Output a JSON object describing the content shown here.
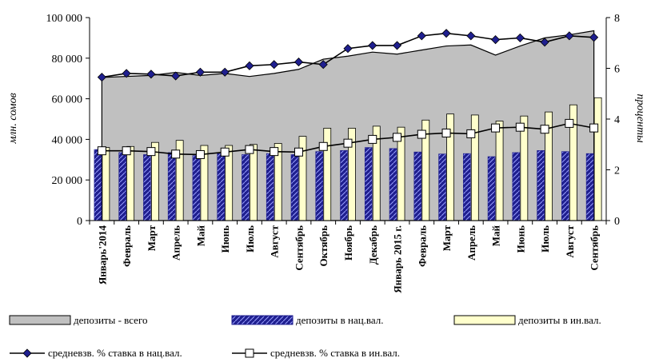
{
  "chart_data": {
    "type": "bar",
    "categories": [
      "Январь'2014",
      "Февраль",
      "Март",
      "Апрель",
      "Май",
      "Июнь",
      "Июль",
      "Август",
      "Сентябрь",
      "Октябрь",
      "Ноябрь",
      "Декабрь",
      "Январь 2015 г.",
      "Февраль",
      "Март",
      "Апрель",
      "Май",
      "Июнь",
      "Июль",
      "Август",
      "Сентябрь"
    ],
    "ylabel": "млн. сомов",
    "y2label": "проценты",
    "ylim": [
      0,
      100000
    ],
    "y2lim": [
      0,
      8
    ],
    "y_ticks": [
      "0",
      "20 000",
      "40 000",
      "60 000",
      "80 000",
      "100 000"
    ],
    "y2_ticks": [
      "0",
      "2",
      "4",
      "6",
      "8"
    ],
    "legend_position": "bottom",
    "colors": {
      "total_area": "#c0c0c0",
      "nat_bar": "#1f1f8f",
      "nat_bar_pattern": "#9aa0ff",
      "foreign_bar": "#ffffcc",
      "line": "#000000",
      "nat_marker": "#1f1f8f",
      "foreign_marker": "#ffffff"
    },
    "series": [
      {
        "name": "депозиты - всего",
        "type": "area",
        "axis": "left",
        "values": [
          70500,
          71000,
          71500,
          73000,
          71500,
          72500,
          71000,
          72500,
          74500,
          79500,
          81000,
          83000,
          82000,
          84000,
          86000,
          86500,
          81500,
          86000,
          90000,
          91500,
          93500
        ]
      },
      {
        "name": "депозиты в нац.вал.",
        "type": "bar",
        "axis": "left",
        "values": [
          35000,
          33500,
          32500,
          33500,
          32000,
          33000,
          32500,
          33000,
          32500,
          34000,
          34500,
          36000,
          35500,
          33800,
          32800,
          33000,
          31500,
          33500,
          34500,
          34000,
          33000
        ]
      },
      {
        "name": "депозиты в ин.вал.",
        "type": "bar",
        "axis": "left",
        "values": [
          36000,
          36500,
          38500,
          39500,
          37000,
          37000,
          37500,
          38000,
          41500,
          45500,
          45500,
          46500,
          46000,
          49500,
          52500,
          52000,
          49000,
          51500,
          53500,
          57000,
          60500
        ]
      },
      {
        "name": "средневзв. % ставка в нац.вал.",
        "type": "line",
        "axis": "right",
        "marker": "diamond",
        "values": [
          5.65,
          5.8,
          5.77,
          5.7,
          5.85,
          5.85,
          6.1,
          6.15,
          6.25,
          6.15,
          6.78,
          6.9,
          6.9,
          7.28,
          7.38,
          7.28,
          7.13,
          7.2,
          7.03,
          7.28,
          7.22
        ]
      },
      {
        "name": "средневзв. % ставка в ин.вал.",
        "type": "line",
        "axis": "right",
        "marker": "square",
        "values": [
          2.75,
          2.75,
          2.72,
          2.62,
          2.6,
          2.7,
          2.8,
          2.72,
          2.7,
          2.92,
          3.05,
          3.2,
          3.28,
          3.4,
          3.45,
          3.42,
          3.65,
          3.68,
          3.6,
          3.83,
          3.65
        ]
      }
    ]
  }
}
